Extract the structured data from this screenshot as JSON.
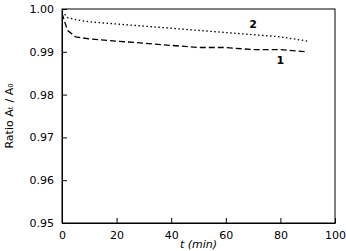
{
  "chart_data": {
    "type": "line",
    "x_label": "t (min)",
    "y_label": "Ratio Aₜ / A₀",
    "x": [
      0,
      2,
      5,
      10,
      20,
      30,
      40,
      50,
      60,
      70,
      80,
      90
    ],
    "series": [
      {
        "name": "1",
        "color": "#000000",
        "line_style": "dashed",
        "values": [
          0.999,
          0.995,
          0.9935,
          0.993,
          0.9925,
          0.992,
          0.9915,
          0.991,
          0.991,
          0.9905,
          0.9905,
          0.99
        ]
      },
      {
        "name": "2",
        "color": "#000000",
        "line_style": "dotted",
        "values": [
          0.9995,
          0.998,
          0.9975,
          0.997,
          0.9965,
          0.996,
          0.9955,
          0.995,
          0.9945,
          0.994,
          0.9935,
          0.9925
        ]
      }
    ],
    "xlim": [
      0,
      100
    ],
    "xticks": [
      0,
      20,
      40,
      60,
      80,
      100
    ],
    "ylim": [
      0.95,
      1
    ],
    "yticks": [
      0.95,
      0.96,
      0.97,
      0.98,
      0.99,
      {
        "value": 1,
        "label": "1.00"
      }
    ],
    "grid": false
  }
}
